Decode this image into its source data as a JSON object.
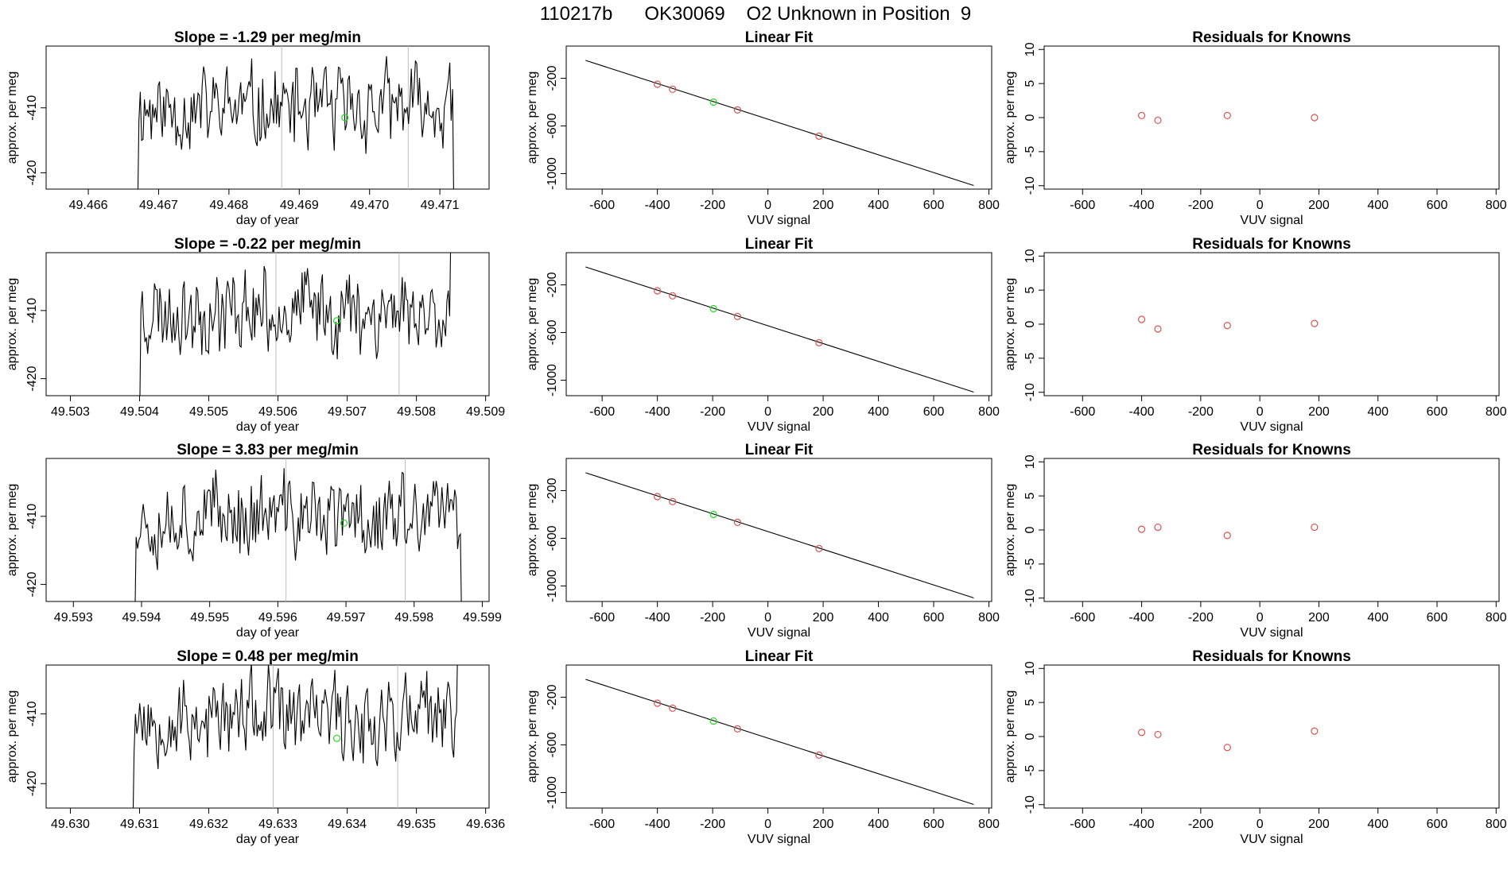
{
  "figure_title": "110217b      OK30069    O2 Unknown in Position  9",
  "colors": {
    "known": "#d9534f",
    "unknown": "#22dd22",
    "line": "#000000",
    "marker_line": "#bdbdbd"
  },
  "chart_data": [
    {
      "row": 1,
      "type": "line",
      "title": "Slope =  -1.29  per meg/min",
      "xlabel": "day of year",
      "ylabel": "approx. per meg",
      "xlim": [
        49.4654,
        49.4717
      ],
      "ylim": [
        -422.5,
        -400.5
      ],
      "xticks": [
        "49.466",
        "49.467",
        "49.468",
        "49.469",
        "49.470",
        "49.471"
      ],
      "xtick_values": [
        49.466,
        49.467,
        49.468,
        49.469,
        49.47,
        49.471
      ],
      "yticks": [
        "-410",
        "-420"
      ],
      "ytick_values": [
        -410,
        -420
      ],
      "trace_start": 49.4667,
      "trace_end": 49.4712,
      "trace_mean": -410.2,
      "trace_amp": 7.5,
      "seed": 11,
      "vlines": [
        49.46875,
        49.47055
      ],
      "unknown_point": {
        "x": 49.46965,
        "y": -411.5
      }
    },
    {
      "row": 1,
      "type": "scatter",
      "title": "Linear Fit",
      "xlabel": "VUV signal",
      "ylabel": "approx. per meg",
      "xlim": [
        -730,
        810
      ],
      "ylim": [
        -1130,
        70
      ],
      "xticks": [
        "-600",
        "-400",
        "-200",
        "0",
        "200",
        "400",
        "600",
        "800"
      ],
      "xtick_values": [
        -600,
        -400,
        -200,
        0,
        200,
        400,
        600,
        800
      ],
      "yticks": [
        "-200",
        "-600",
        "-1000"
      ],
      "ytick_values": [
        -200,
        -600,
        -1000
      ],
      "fit": {
        "x0": -660,
        "y0": -50,
        "x1": 745,
        "y1": -1100
      },
      "knowns": [
        {
          "x": -400,
          "y": -250
        },
        {
          "x": -345,
          "y": -292
        },
        {
          "x": -110,
          "y": -466
        },
        {
          "x": 185,
          "y": -686
        }
      ],
      "unknown": {
        "x": -197,
        "y": -400
      }
    },
    {
      "row": 1,
      "type": "scatter",
      "title": "Residuals for Knowns",
      "xlabel": "VUV signal",
      "ylabel": "approx. per meg",
      "xlim": [
        -730,
        810
      ],
      "ylim": [
        -10.5,
        10.5
      ],
      "xticks": [
        "-600",
        "-400",
        "-200",
        "0",
        "200",
        "400",
        "600",
        "800"
      ],
      "xtick_values": [
        -600,
        -400,
        -200,
        0,
        200,
        400,
        600,
        800
      ],
      "yticks": [
        "10",
        "5",
        "0",
        "-5",
        "-10"
      ],
      "ytick_values": [
        10,
        5,
        0,
        -5,
        -10
      ],
      "points": [
        {
          "x": -400,
          "y": 0.3
        },
        {
          "x": -345,
          "y": -0.4
        },
        {
          "x": -110,
          "y": 0.3
        },
        {
          "x": 185,
          "y": 0.0
        }
      ]
    },
    {
      "row": 2,
      "type": "line",
      "title": "Slope =  -0.22  per meg/min",
      "xlabel": "day of year",
      "ylabel": "approx. per meg",
      "xlim": [
        49.50265,
        49.50905
      ],
      "ylim": [
        -422.5,
        -401.5
      ],
      "xticks": [
        "49.503",
        "49.504",
        "49.505",
        "49.506",
        "49.507",
        "49.508",
        "49.509"
      ],
      "xtick_values": [
        49.503,
        49.504,
        49.505,
        49.506,
        49.507,
        49.508,
        49.509
      ],
      "yticks": [
        "-410",
        "-420"
      ],
      "ytick_values": [
        -410,
        -420
      ],
      "trace_start": 49.504,
      "trace_end": 49.5085,
      "trace_mean": -410.0,
      "trace_amp": 7.0,
      "seed": 23,
      "vlines": [
        49.50597,
        49.50775
      ],
      "unknown_point": {
        "x": 49.50685,
        "y": -411.5
      }
    },
    {
      "row": 2,
      "type": "scatter",
      "title": "Linear Fit",
      "xlabel": "VUV signal",
      "ylabel": "approx. per meg",
      "xlim": [
        -730,
        810
      ],
      "ylim": [
        -1130,
        70
      ],
      "xticks": [
        "-600",
        "-400",
        "-200",
        "0",
        "200",
        "400",
        "600",
        "800"
      ],
      "xtick_values": [
        -600,
        -400,
        -200,
        0,
        200,
        400,
        600,
        800
      ],
      "yticks": [
        "-200",
        "-600",
        "-1000"
      ],
      "ytick_values": [
        -200,
        -600,
        -1000
      ],
      "fit": {
        "x0": -660,
        "y0": -50,
        "x1": 745,
        "y1": -1100
      },
      "knowns": [
        {
          "x": -400,
          "y": -250
        },
        {
          "x": -345,
          "y": -292
        },
        {
          "x": -110,
          "y": -466
        },
        {
          "x": 185,
          "y": -686
        }
      ],
      "unknown": {
        "x": -197,
        "y": -400
      }
    },
    {
      "row": 2,
      "type": "scatter",
      "title": "Residuals for Knowns",
      "xlabel": "VUV signal",
      "ylabel": "approx. per meg",
      "xlim": [
        -730,
        810
      ],
      "ylim": [
        -10.5,
        10.5
      ],
      "xticks": [
        "-600",
        "-400",
        "-200",
        "0",
        "200",
        "400",
        "600",
        "800"
      ],
      "xtick_values": [
        -600,
        -400,
        -200,
        0,
        200,
        400,
        600,
        800
      ],
      "yticks": [
        "10",
        "5",
        "0",
        "-5",
        "-10"
      ],
      "ytick_values": [
        10,
        5,
        0,
        -5,
        -10
      ],
      "points": [
        {
          "x": -400,
          "y": 0.7
        },
        {
          "x": -345,
          "y": -0.7
        },
        {
          "x": -110,
          "y": -0.2
        },
        {
          "x": 185,
          "y": 0.1
        }
      ]
    },
    {
      "row": 3,
      "type": "line",
      "title": "Slope =  3.83  per meg/min",
      "xlabel": "day of year",
      "ylabel": "approx. per meg",
      "xlim": [
        49.5926,
        49.5991
      ],
      "ylim": [
        -422.5,
        -401.5
      ],
      "xticks": [
        "49.593",
        "49.594",
        "49.595",
        "49.596",
        "49.597",
        "49.598",
        "49.599"
      ],
      "xtick_values": [
        49.593,
        49.594,
        49.595,
        49.596,
        49.597,
        49.598,
        49.599
      ],
      "yticks": [
        "-410",
        "-420"
      ],
      "ytick_values": [
        -410,
        -420
      ],
      "trace_start": 49.5939,
      "trace_end": 49.5987,
      "trace_mean": -410.0,
      "trace_amp": 7.0,
      "seed": 37,
      "vlines": [
        49.59612,
        49.59787
      ],
      "unknown_point": {
        "x": 49.59697,
        "y": -411.0
      }
    },
    {
      "row": 3,
      "type": "scatter",
      "title": "Linear Fit",
      "xlabel": "VUV signal",
      "ylabel": "approx. per meg",
      "xlim": [
        -730,
        810
      ],
      "ylim": [
        -1130,
        70
      ],
      "xticks": [
        "-600",
        "-400",
        "-200",
        "0",
        "200",
        "400",
        "600",
        "800"
      ],
      "xtick_values": [
        -600,
        -400,
        -200,
        0,
        200,
        400,
        600,
        800
      ],
      "yticks": [
        "-200",
        "-600",
        "-1000"
      ],
      "ytick_values": [
        -200,
        -600,
        -1000
      ],
      "fit": {
        "x0": -660,
        "y0": -50,
        "x1": 745,
        "y1": -1100
      },
      "knowns": [
        {
          "x": -400,
          "y": -250
        },
        {
          "x": -345,
          "y": -292
        },
        {
          "x": -110,
          "y": -466
        },
        {
          "x": 185,
          "y": -686
        }
      ],
      "unknown": {
        "x": -197,
        "y": -400
      }
    },
    {
      "row": 3,
      "type": "scatter",
      "title": "Residuals for Knowns",
      "xlabel": "VUV signal",
      "ylabel": "approx. per meg",
      "xlim": [
        -730,
        810
      ],
      "ylim": [
        -10.5,
        10.5
      ],
      "xticks": [
        "-600",
        "-400",
        "-200",
        "0",
        "200",
        "400",
        "600",
        "800"
      ],
      "xtick_values": [
        -600,
        -400,
        -200,
        0,
        200,
        400,
        600,
        800
      ],
      "yticks": [
        "10",
        "5",
        "0",
        "-5",
        "-10"
      ],
      "ytick_values": [
        10,
        5,
        0,
        -5,
        -10
      ],
      "points": [
        {
          "x": -400,
          "y": 0.1
        },
        {
          "x": -345,
          "y": 0.4
        },
        {
          "x": -110,
          "y": -0.8
        },
        {
          "x": 185,
          "y": 0.4
        }
      ]
    },
    {
      "row": 4,
      "type": "line",
      "title": "Slope =  0.48  per meg/min",
      "xlabel": "day of year",
      "ylabel": "approx. per meg",
      "xlim": [
        49.62965,
        49.63605
      ],
      "ylim": [
        -423.5,
        -403.0
      ],
      "xticks": [
        "49.630",
        "49.631",
        "49.632",
        "49.633",
        "49.634",
        "49.635",
        "49.636"
      ],
      "xtick_values": [
        49.63,
        49.631,
        49.632,
        49.633,
        49.634,
        49.635,
        49.636
      ],
      "yticks": [
        "-410",
        "-420"
      ],
      "ytick_values": [
        -410,
        -420
      ],
      "trace_start": 49.6309,
      "trace_end": 49.6356,
      "trace_mean": -410.5,
      "trace_amp": 7.0,
      "seed": 53,
      "vlines": [
        49.63293,
        49.63473
      ],
      "unknown_point": {
        "x": 49.63385,
        "y": -413.5
      }
    },
    {
      "row": 4,
      "type": "scatter",
      "title": "Linear Fit",
      "xlabel": "VUV signal",
      "ylabel": "approx. per meg",
      "xlim": [
        -730,
        810
      ],
      "ylim": [
        -1130,
        70
      ],
      "xticks": [
        "-600",
        "-400",
        "-200",
        "0",
        "200",
        "400",
        "600",
        "800"
      ],
      "xtick_values": [
        -600,
        -400,
        -200,
        0,
        200,
        400,
        600,
        800
      ],
      "yticks": [
        "-200",
        "-600",
        "-1000"
      ],
      "ytick_values": [
        -200,
        -600,
        -1000
      ],
      "fit": {
        "x0": -660,
        "y0": -50,
        "x1": 745,
        "y1": -1100
      },
      "knowns": [
        {
          "x": -400,
          "y": -250
        },
        {
          "x": -345,
          "y": -292
        },
        {
          "x": -110,
          "y": -466
        },
        {
          "x": 185,
          "y": -686
        }
      ],
      "unknown": {
        "x": -197,
        "y": -400
      }
    },
    {
      "row": 4,
      "type": "scatter",
      "title": "Residuals for Knowns",
      "xlabel": "VUV signal",
      "ylabel": "approx. per meg",
      "xlim": [
        -730,
        810
      ],
      "ylim": [
        -10.5,
        10.5
      ],
      "xticks": [
        "-600",
        "-400",
        "-200",
        "0",
        "200",
        "400",
        "600",
        "800"
      ],
      "xtick_values": [
        -600,
        -400,
        -200,
        0,
        200,
        400,
        600,
        800
      ],
      "yticks": [
        "10",
        "5",
        "0",
        "-5",
        "-10"
      ],
      "ytick_values": [
        10,
        5,
        0,
        -5,
        -10
      ],
      "points": [
        {
          "x": -400,
          "y": 0.6
        },
        {
          "x": -345,
          "y": 0.3
        },
        {
          "x": -110,
          "y": -1.6
        },
        {
          "x": 185,
          "y": 0.8
        }
      ]
    }
  ]
}
